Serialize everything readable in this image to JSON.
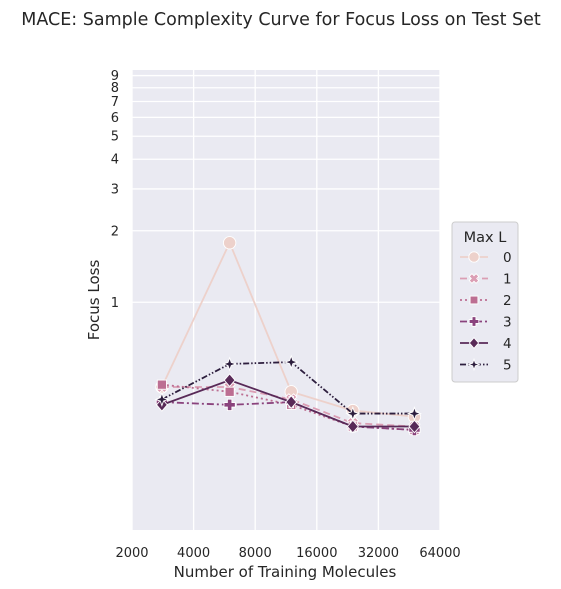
{
  "chart_data": {
    "type": "line",
    "title": "MACE: Sample Complexity Curve for Focus Loss on Test Set",
    "xlabel": "Number of Training Molecules",
    "ylabel": "Focus Loss",
    "x_scale": "log2",
    "y_scale": "log",
    "xlim": [
      2000,
      64000
    ],
    "ylim": [
      0.11,
      9.5
    ],
    "x_ticks": [
      2000,
      4000,
      8000,
      16000,
      32000,
      64000
    ],
    "x_tick_labels": [
      "2000",
      "4000",
      "8000",
      "16000",
      "32000",
      "64000"
    ],
    "y_ticks": [
      1,
      2,
      3,
      4,
      5,
      6,
      7,
      8,
      9
    ],
    "y_tick_labels": [
      "1",
      "2",
      "3",
      "4",
      "5",
      "6",
      "7",
      "8",
      "9"
    ],
    "grid": true,
    "legend": {
      "title": "Max L",
      "position": "right"
    },
    "x": [
      2800,
      6000,
      12000,
      24000,
      48000
    ],
    "series": [
      {
        "name": "0",
        "values": [
          0.44,
          1.78,
          0.42,
          0.35,
          0.33
        ],
        "color": "#edd1cb",
        "marker": "circle",
        "dash": "solid"
      },
      {
        "name": "1",
        "values": [
          0.44,
          0.44,
          0.39,
          0.31,
          0.3
        ],
        "color": "#db9eb4",
        "marker": "x",
        "dash": "dashed"
      },
      {
        "name": "2",
        "values": [
          0.45,
          0.42,
          0.37,
          0.3,
          0.29
        ],
        "color": "#bc6e92",
        "marker": "square",
        "dash": "dotted"
      },
      {
        "name": "3",
        "values": [
          0.38,
          0.37,
          0.38,
          0.3,
          0.29
        ],
        "color": "#8a437d",
        "marker": "plus",
        "dash": "dashdot"
      },
      {
        "name": "4",
        "values": [
          0.37,
          0.47,
          0.38,
          0.3,
          0.3
        ],
        "color": "#592a58",
        "marker": "diamond",
        "dash": "solid"
      },
      {
        "name": "5",
        "values": [
          0.39,
          0.55,
          0.56,
          0.34,
          0.34
        ],
        "color": "#2d1e3e",
        "marker": "star",
        "dash": "dashdotdot"
      }
    ]
  },
  "style": {
    "background": "#ffffff",
    "plot_background": "#eaeaf2",
    "grid_color": "#ffffff"
  }
}
